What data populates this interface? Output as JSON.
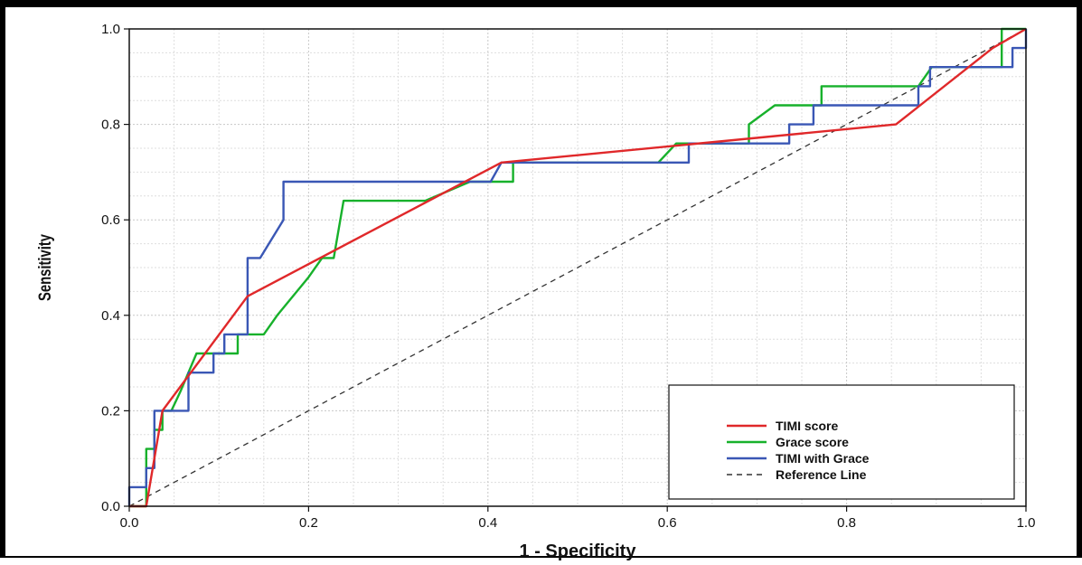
{
  "chart_data": {
    "type": "line",
    "title": "",
    "xlabel": "1 - Specificity",
    "ylabel": "Sensitivity",
    "xlim": [
      0,
      1
    ],
    "ylim": [
      0,
      1
    ],
    "x_ticks": [
      "0.0",
      "0.2",
      "0.4",
      "0.6",
      "0.8",
      "1.0"
    ],
    "y_ticks": [
      "0.0",
      "0.2",
      "0.4",
      "0.6",
      "0.8",
      "1.0"
    ],
    "grid": true,
    "legend_position": "bottom-right",
    "series": [
      {
        "name": "TIMI score",
        "color": "#e0282a",
        "dash": "",
        "points": [
          [
            0,
            0
          ],
          [
            0.019,
            0
          ],
          [
            0.037,
            0.2
          ],
          [
            0.132,
            0.44
          ],
          [
            0.415,
            0.72
          ],
          [
            0.855,
            0.8
          ],
          [
            0.963,
            0.96
          ],
          [
            1,
            1
          ]
        ]
      },
      {
        "name": "Grace score",
        "color": "#17b12b",
        "dash": "",
        "points": [
          [
            0,
            0
          ],
          [
            0.019,
            0
          ],
          [
            0.019,
            0.08
          ],
          [
            0.019,
            0.12
          ],
          [
            0.028,
            0.12
          ],
          [
            0.028,
            0.16
          ],
          [
            0.037,
            0.16
          ],
          [
            0.037,
            0.2
          ],
          [
            0.047,
            0.2
          ],
          [
            0.057,
            0.24
          ],
          [
            0.075,
            0.32
          ],
          [
            0.094,
            0.32
          ],
          [
            0.094,
            0.32
          ],
          [
            0.121,
            0.32
          ],
          [
            0.121,
            0.36
          ],
          [
            0.15,
            0.36
          ],
          [
            0.165,
            0.4
          ],
          [
            0.2,
            0.48
          ],
          [
            0.215,
            0.52
          ],
          [
            0.228,
            0.52
          ],
          [
            0.239,
            0.64
          ],
          [
            0.33,
            0.64
          ],
          [
            0.38,
            0.68
          ],
          [
            0.428,
            0.68
          ],
          [
            0.428,
            0.72
          ],
          [
            0.59,
            0.72
          ],
          [
            0.61,
            0.76
          ],
          [
            0.691,
            0.76
          ],
          [
            0.691,
            0.8
          ],
          [
            0.72,
            0.84
          ],
          [
            0.763,
            0.84
          ],
          [
            0.772,
            0.84
          ],
          [
            0.772,
            0.88
          ],
          [
            0.88,
            0.88
          ],
          [
            0.895,
            0.92
          ],
          [
            0.973,
            0.92
          ],
          [
            0.973,
            1.0
          ],
          [
            1,
            1
          ]
        ]
      },
      {
        "name": "TIMI with Grace",
        "color": "#3a57b5",
        "dash": "",
        "points": [
          [
            0,
            0
          ],
          [
            0,
            0.04
          ],
          [
            0.009,
            0.04
          ],
          [
            0.009,
            0.04
          ],
          [
            0.019,
            0.04
          ],
          [
            0.019,
            0.08
          ],
          [
            0.028,
            0.08
          ],
          [
            0.028,
            0.2
          ],
          [
            0.066,
            0.2
          ],
          [
            0.066,
            0.28
          ],
          [
            0.094,
            0.28
          ],
          [
            0.094,
            0.32
          ],
          [
            0.106,
            0.32
          ],
          [
            0.106,
            0.36
          ],
          [
            0.132,
            0.36
          ],
          [
            0.132,
            0.52
          ],
          [
            0.146,
            0.52
          ],
          [
            0.172,
            0.6
          ],
          [
            0.172,
            0.68
          ],
          [
            0.403,
            0.68
          ],
          [
            0.415,
            0.72
          ],
          [
            0.624,
            0.72
          ],
          [
            0.624,
            0.76
          ],
          [
            0.736,
            0.76
          ],
          [
            0.736,
            0.8
          ],
          [
            0.763,
            0.8
          ],
          [
            0.763,
            0.84
          ],
          [
            0.88,
            0.84
          ],
          [
            0.88,
            0.88
          ],
          [
            0.893,
            0.88
          ],
          [
            0.893,
            0.92
          ],
          [
            0.985,
            0.92
          ],
          [
            0.985,
            0.96
          ],
          [
            1,
            0.96
          ],
          [
            1,
            1
          ]
        ]
      },
      {
        "name": "Reference Line",
        "color": "#333333",
        "dash": "6,5",
        "points": [
          [
            0,
            0
          ],
          [
            1,
            1
          ]
        ]
      }
    ]
  }
}
